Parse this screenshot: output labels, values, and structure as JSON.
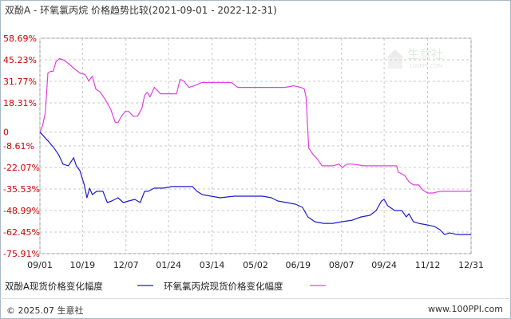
{
  "title": "双酚A - 环氧氯丙烷 价格趋势比较(2021-09-01 - 2022-12-31)",
  "footer": {
    "copyright": "© 2025.07 生意社",
    "site": "www.100PPI.com"
  },
  "watermark": {
    "brand": "生意社",
    "url": "100PPI.COM"
  },
  "colors": {
    "series_a": "#1c1ccc",
    "series_b": "#e040e0",
    "ytick": "#cc0000",
    "grid": "#c8c8c8"
  },
  "chart_data": {
    "type": "line",
    "title": "双酚A - 环氧氯丙烷 价格趋势比较(2021-09-01 - 2022-12-31)",
    "xlabel": "",
    "ylabel": "",
    "ylim": [
      -75.91,
      58.69
    ],
    "xlim": [
      "2021-09-01",
      "2022-12-31"
    ],
    "yticks": [
      "58.69%",
      "45.23%",
      "31.77%",
      "18.31%",
      "0",
      "-8.61%",
      "-22.07%",
      "-35.53%",
      "-48.99%",
      "-62.45%",
      "-75.91%"
    ],
    "ytick_values": [
      58.69,
      45.23,
      31.77,
      18.31,
      0,
      -8.61,
      -22.07,
      -35.53,
      -48.99,
      -62.45,
      -75.91
    ],
    "xticks": [
      "09/01",
      "10/19",
      "12/07",
      "01/24",
      "03/14",
      "05/02",
      "06/19",
      "08/07",
      "09/24",
      "11/12",
      "12/31"
    ],
    "xtick_dates": [
      "2021-09-01",
      "2021-10-19",
      "2021-12-07",
      "2022-01-24",
      "2022-03-14",
      "2022-05-02",
      "2022-06-19",
      "2022-08-07",
      "2022-09-24",
      "2022-11-12",
      "2022-12-31"
    ],
    "grid": true,
    "legend": "bottom",
    "series": [
      {
        "name": "双酚A现货价格变化幅度",
        "color": "#1c1ccc",
        "points": [
          [
            "2021-09-01",
            0
          ],
          [
            "2021-09-06",
            -3
          ],
          [
            "2021-09-11",
            -6
          ],
          [
            "2021-09-17",
            -10
          ],
          [
            "2021-09-22",
            -14
          ],
          [
            "2021-09-27",
            -20
          ],
          [
            "2021-10-03",
            -21
          ],
          [
            "2021-10-09",
            -16
          ],
          [
            "2021-10-12",
            -21
          ],
          [
            "2021-10-16",
            -24
          ],
          [
            "2021-10-21",
            -33
          ],
          [
            "2021-10-24",
            -41
          ],
          [
            "2021-10-27",
            -35
          ],
          [
            "2021-10-30",
            -39
          ],
          [
            "2021-11-04",
            -37
          ],
          [
            "2021-11-11",
            -37
          ],
          [
            "2021-11-16",
            -44
          ],
          [
            "2021-11-21",
            -43
          ],
          [
            "2021-11-28",
            -41
          ],
          [
            "2021-12-04",
            -44
          ],
          [
            "2021-12-10",
            -43
          ],
          [
            "2021-12-17",
            -42
          ],
          [
            "2021-12-23",
            -44
          ],
          [
            "2021-12-28",
            -37
          ],
          [
            "2022-01-01",
            -37
          ],
          [
            "2022-01-08",
            -35
          ],
          [
            "2022-01-18",
            -35
          ],
          [
            "2022-01-28",
            -34
          ],
          [
            "2022-02-08",
            -34
          ],
          [
            "2022-02-20",
            -34
          ],
          [
            "2022-02-25",
            -37
          ],
          [
            "2022-03-03",
            -39
          ],
          [
            "2022-03-13",
            -40
          ],
          [
            "2022-03-23",
            -41
          ],
          [
            "2022-04-08",
            -40
          ],
          [
            "2022-04-22",
            -40
          ],
          [
            "2022-05-10",
            -40
          ],
          [
            "2022-05-20",
            -41
          ],
          [
            "2022-05-27",
            -43
          ],
          [
            "2022-06-06",
            -44
          ],
          [
            "2022-06-16",
            -45
          ],
          [
            "2022-06-24",
            -47
          ],
          [
            "2022-06-30",
            -53
          ],
          [
            "2022-07-08",
            -56
          ],
          [
            "2022-07-18",
            -57
          ],
          [
            "2022-07-28",
            -57
          ],
          [
            "2022-08-07",
            -56
          ],
          [
            "2022-08-19",
            -55
          ],
          [
            "2022-08-29",
            -53
          ],
          [
            "2022-09-08",
            -52
          ],
          [
            "2022-09-15",
            -49
          ],
          [
            "2022-09-21",
            -43
          ],
          [
            "2022-09-24",
            -42
          ],
          [
            "2022-09-28",
            -46
          ],
          [
            "2022-10-06",
            -49
          ],
          [
            "2022-10-14",
            -49
          ],
          [
            "2022-10-19",
            -53
          ],
          [
            "2022-10-22",
            -51
          ],
          [
            "2022-10-27",
            -56
          ],
          [
            "2022-11-02",
            -57
          ],
          [
            "2022-11-12",
            -58
          ],
          [
            "2022-11-20",
            -59
          ],
          [
            "2022-11-26",
            -61
          ],
          [
            "2022-12-01",
            -64
          ],
          [
            "2022-12-07",
            -63
          ],
          [
            "2022-12-15",
            -64
          ],
          [
            "2022-12-31",
            -64
          ]
        ]
      },
      {
        "name": "环氧氯丙烷现货价格变化幅度",
        "color": "#e040e0",
        "points": [
          [
            "2021-09-01",
            0
          ],
          [
            "2021-09-04",
            4
          ],
          [
            "2021-09-07",
            12
          ],
          [
            "2021-09-10",
            37
          ],
          [
            "2021-09-13",
            38
          ],
          [
            "2021-09-16",
            38
          ],
          [
            "2021-09-19",
            44
          ],
          [
            "2021-09-23",
            46
          ],
          [
            "2021-09-28",
            45
          ],
          [
            "2021-10-03",
            43
          ],
          [
            "2021-10-09",
            40
          ],
          [
            "2021-10-16",
            37
          ],
          [
            "2021-10-22",
            36
          ],
          [
            "2021-10-26",
            32
          ],
          [
            "2021-10-30",
            35
          ],
          [
            "2021-11-03",
            27
          ],
          [
            "2021-11-08",
            25
          ],
          [
            "2021-11-14",
            20
          ],
          [
            "2021-11-20",
            14
          ],
          [
            "2021-11-25",
            6
          ],
          [
            "2021-11-28",
            6
          ],
          [
            "2021-12-02",
            10
          ],
          [
            "2021-12-06",
            13
          ],
          [
            "2021-12-10",
            13
          ],
          [
            "2021-12-15",
            10
          ],
          [
            "2021-12-20",
            10
          ],
          [
            "2021-12-25",
            15
          ],
          [
            "2021-12-28",
            23
          ],
          [
            "2021-12-31",
            25
          ],
          [
            "2022-01-03",
            22
          ],
          [
            "2022-01-08",
            28
          ],
          [
            "2022-01-15",
            24
          ],
          [
            "2022-01-25",
            24
          ],
          [
            "2022-02-02",
            24
          ],
          [
            "2022-02-06",
            33
          ],
          [
            "2022-02-10",
            32
          ],
          [
            "2022-02-16",
            28
          ],
          [
            "2022-02-22",
            29
          ],
          [
            "2022-03-02",
            31
          ],
          [
            "2022-03-15",
            31
          ],
          [
            "2022-03-25",
            31
          ],
          [
            "2022-04-05",
            31
          ],
          [
            "2022-04-12",
            28
          ],
          [
            "2022-04-25",
            28
          ],
          [
            "2022-05-05",
            28
          ],
          [
            "2022-05-15",
            28
          ],
          [
            "2022-05-25",
            28
          ],
          [
            "2022-06-04",
            28
          ],
          [
            "2022-06-14",
            29
          ],
          [
            "2022-06-22",
            28
          ],
          [
            "2022-06-26",
            27
          ],
          [
            "2022-06-28",
            22
          ],
          [
            "2022-07-01",
            -10
          ],
          [
            "2022-07-06",
            -14
          ],
          [
            "2022-07-11",
            -17
          ],
          [
            "2022-07-16",
            -21
          ],
          [
            "2022-07-23",
            -21
          ],
          [
            "2022-07-28",
            -21
          ],
          [
            "2022-08-04",
            -20
          ],
          [
            "2022-08-08",
            -22
          ],
          [
            "2022-08-13",
            -20
          ],
          [
            "2022-08-20",
            -20
          ],
          [
            "2022-09-01",
            -21
          ],
          [
            "2022-09-15",
            -21
          ],
          [
            "2022-09-30",
            -21
          ],
          [
            "2022-10-08",
            -21
          ],
          [
            "2022-10-10",
            -25
          ],
          [
            "2022-10-17",
            -27
          ],
          [
            "2022-10-22",
            -31
          ],
          [
            "2022-10-27",
            -33
          ],
          [
            "2022-11-02",
            -33
          ],
          [
            "2022-11-06",
            -36
          ],
          [
            "2022-11-12",
            -38
          ],
          [
            "2022-11-18",
            -38
          ],
          [
            "2022-11-26",
            -37
          ],
          [
            "2022-12-06",
            -37
          ],
          [
            "2022-12-16",
            -37
          ],
          [
            "2022-12-31",
            -37
          ]
        ]
      }
    ]
  }
}
